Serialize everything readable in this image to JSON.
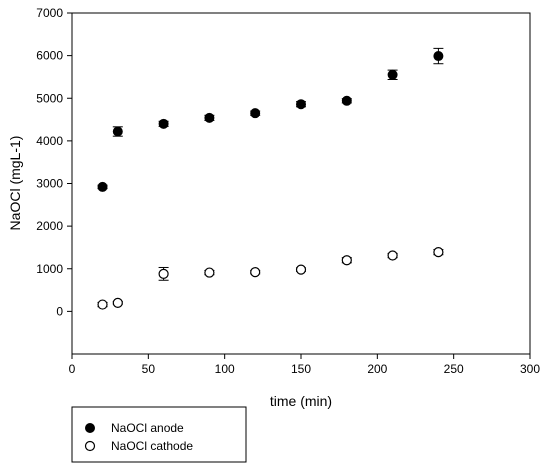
{
  "chart_data": {
    "type": "scatter",
    "xlabel": "time (min)",
    "ylabel": "NaOCl (mgL-1)",
    "xlim": [
      0,
      300
    ],
    "ylim": [
      -1000,
      7000
    ],
    "xticks": [
      0,
      50,
      100,
      150,
      200,
      250,
      300
    ],
    "yticks": [
      0,
      1000,
      2000,
      3000,
      4000,
      5000,
      6000,
      7000
    ],
    "grid": false,
    "legend_position": "bottom-left-outside",
    "series": [
      {
        "name": "NaOCl anode",
        "marker": "filled-circle",
        "color": "#000000",
        "x": [
          20,
          30,
          60,
          90,
          120,
          150,
          180,
          210,
          240
        ],
        "y": [
          2920,
          4220,
          4400,
          4540,
          4650,
          4860,
          4940,
          5550,
          5990
        ],
        "err": [
          40,
          110,
          60,
          60,
          50,
          60,
          50,
          110,
          180
        ]
      },
      {
        "name": "NaOCl cathode",
        "marker": "open-circle",
        "color": "#000000",
        "x": [
          20,
          30,
          60,
          90,
          120,
          150,
          180,
          210,
          240
        ],
        "y": [
          160,
          200,
          880,
          910,
          920,
          980,
          1200,
          1310,
          1390
        ],
        "err": [
          50,
          30,
          150,
          50,
          40,
          40,
          60,
          50,
          60
        ]
      }
    ]
  }
}
